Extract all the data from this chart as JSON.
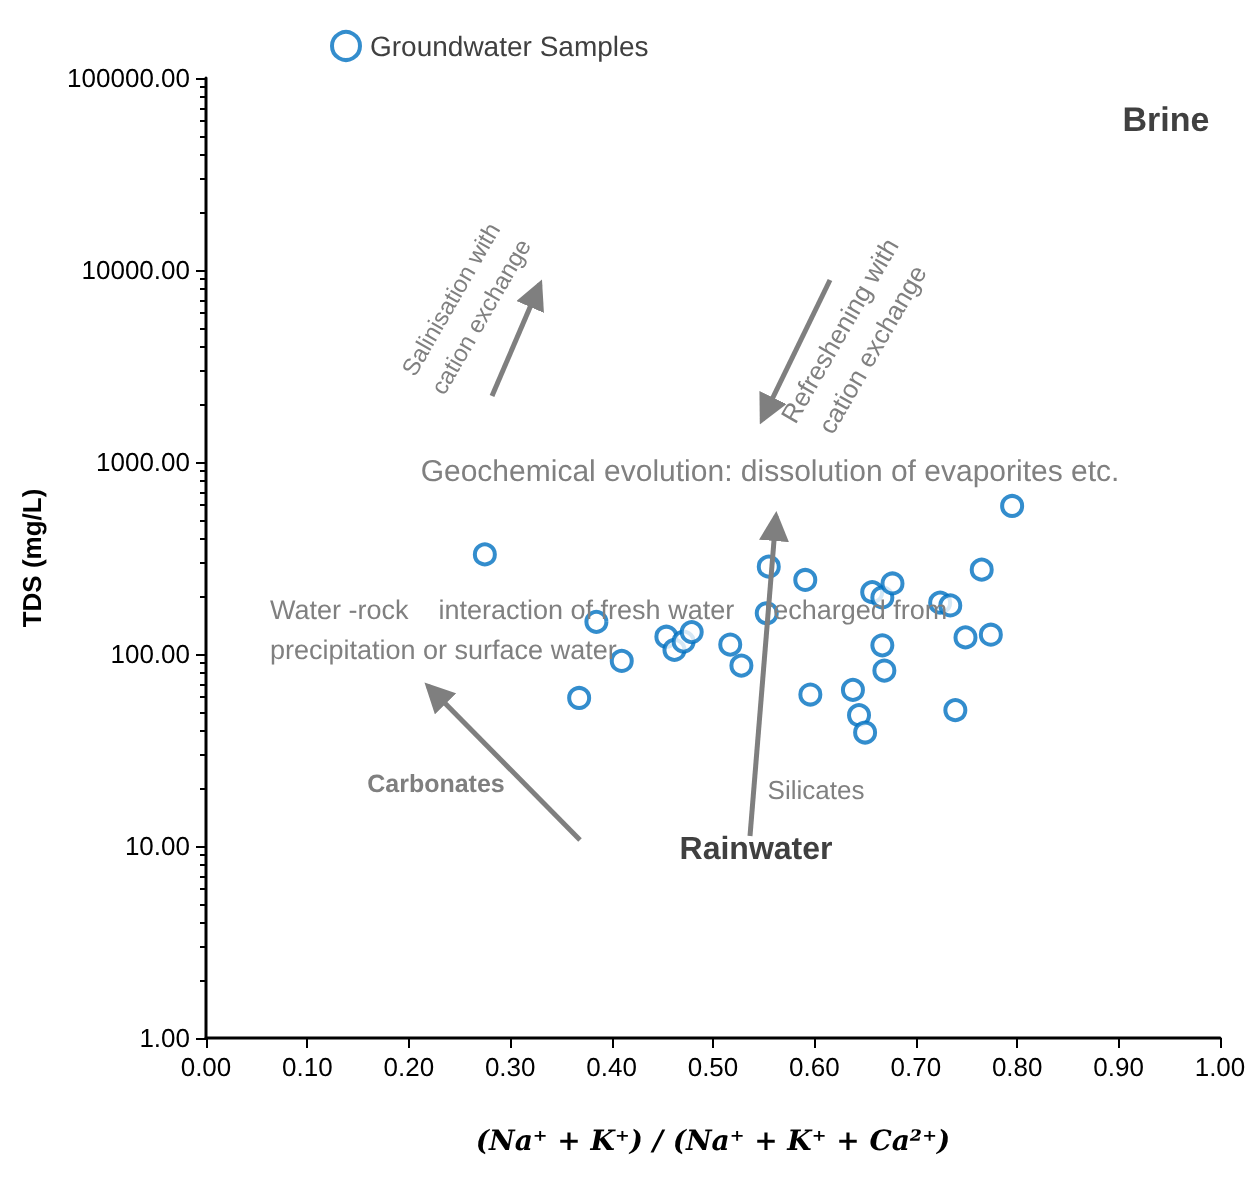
{
  "chart_data": {
    "type": "scatter",
    "xlabel": "(Na⁺ + K⁺) / (Na⁺ + K⁺ + Ca²⁺)",
    "ylabel": "TDS (mg/L)",
    "series": [
      {
        "name": "Groundwater Samples",
        "color": "#0070c0",
        "x": [
          0.275,
          0.385,
          0.41,
          0.368,
          0.454,
          0.462,
          0.471,
          0.479,
          0.517,
          0.528,
          0.555,
          0.553,
          0.591,
          0.596,
          0.638,
          0.644,
          0.65,
          0.657,
          0.667,
          0.677,
          0.667,
          0.669,
          0.724,
          0.734,
          0.739,
          0.749,
          0.774,
          0.765,
          0.795
        ],
        "values": [
          330,
          147,
          92,
          59,
          123,
          105,
          116,
          130,
          112,
          87,
          285,
          163,
          243,
          61.5,
          65,
          48,
          39,
          210,
          197,
          233,
          111,
          82,
          185,
          179,
          51,
          122,
          126,
          275,
          590
        ]
      }
    ],
    "xlim": [
      0,
      1
    ],
    "xticks": [
      {
        "value": 0,
        "label": "0.00"
      },
      {
        "value": 0.1,
        "label": "0.10"
      },
      {
        "value": 0.2,
        "label": "0.20"
      },
      {
        "value": 0.3,
        "label": "0.30"
      },
      {
        "value": 0.4,
        "label": "0.40"
      },
      {
        "value": 0.5,
        "label": "0.50"
      },
      {
        "value": 0.6,
        "label": "0.60"
      },
      {
        "value": 0.7,
        "label": "0.70"
      },
      {
        "value": 0.8,
        "label": "0.80"
      },
      {
        "value": 0.9,
        "label": "0.90"
      },
      {
        "value": 1,
        "label": "1.00"
      }
    ],
    "ylim": [
      1,
      100000
    ],
    "yticks": [
      {
        "value": 1,
        "label": "1.00"
      },
      {
        "value": 10,
        "label": "10.00"
      },
      {
        "value": 100,
        "label": "100.00"
      },
      {
        "value": 1000,
        "label": "1000.00"
      },
      {
        "value": 10000,
        "label": "10000.00"
      },
      {
        "value": 100000,
        "label": "100000.00"
      }
    ],
    "log": "y",
    "grid": false,
    "legend": "top left",
    "marker": "circle",
    "annotations": [
      "Brine",
      "Salinisation with\ncation exchange",
      "Refreshening with\ncation exchange",
      "Geochemical evolution: dissolution of evaporites etc.",
      "Water -rock    interaction of fresh water    recharged from\nprecipitation or surface water",
      "Carbonates",
      "Silicates",
      "Rainwater"
    ]
  }
}
